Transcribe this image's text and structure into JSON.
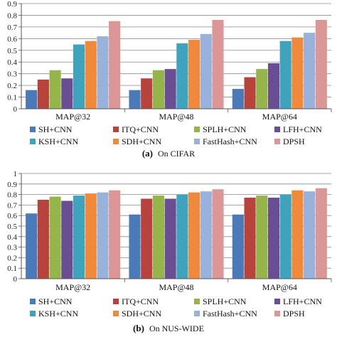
{
  "figure": {
    "series_names": [
      "SH+CNN",
      "ITQ+CNN",
      "SPLH+CNN",
      "LFH+CNN",
      "KSH+CNN",
      "SDH+CNN",
      "FastHash+CNN",
      "DPSH"
    ],
    "series_colors": [
      "#4a7ab8",
      "#b8433d",
      "#93b54a",
      "#6a4e93",
      "#3ea3bd",
      "#f08a3a",
      "#98b2dc",
      "#da9795"
    ]
  },
  "chart_data": [
    {
      "type": "bar",
      "caption_letter": "(a)",
      "caption_text": "On CIFAR",
      "categories": [
        "MAP@32",
        "MAP@48",
        "MAP@64"
      ],
      "ylim": [
        0,
        0.9
      ],
      "yticks": [
        "0",
        "0.1",
        "0.2",
        "0.3",
        "0.4",
        "0.5",
        "0.6",
        "0.7",
        "0.8",
        "0.9"
      ],
      "legend_position": "bottom",
      "grid": true,
      "series": [
        {
          "name": "SH+CNN",
          "values": [
            0.16,
            0.16,
            0.17
          ]
        },
        {
          "name": "ITQ+CNN",
          "values": [
            0.25,
            0.26,
            0.27
          ]
        },
        {
          "name": "SPLH+CNN",
          "values": [
            0.33,
            0.33,
            0.34
          ]
        },
        {
          "name": "LFH+CNN",
          "values": [
            0.26,
            0.34,
            0.39
          ]
        },
        {
          "name": "KSH+CNN",
          "values": [
            0.55,
            0.56,
            0.58
          ]
        },
        {
          "name": "SDH+CNN",
          "values": [
            0.58,
            0.59,
            0.61
          ]
        },
        {
          "name": "FastHash+CNN",
          "values": [
            0.62,
            0.64,
            0.65
          ]
        },
        {
          "name": "DPSH",
          "values": [
            0.75,
            0.76,
            0.76
          ]
        }
      ]
    },
    {
      "type": "bar",
      "caption_letter": "(b)",
      "caption_text": "On NUS-WIDE",
      "categories": [
        "MAP@32",
        "MAP@48",
        "MAP@64"
      ],
      "ylim": [
        0,
        1
      ],
      "yticks": [
        "0",
        "0.1",
        "0.2",
        "0.3",
        "0.4",
        "0.5",
        "0.6",
        "0.7",
        "0.8",
        "0.9",
        "1"
      ],
      "legend_position": "bottom",
      "grid": true,
      "series": [
        {
          "name": "SH+CNN",
          "values": [
            0.62,
            0.61,
            0.61
          ]
        },
        {
          "name": "ITQ+CNN",
          "values": [
            0.75,
            0.76,
            0.77
          ]
        },
        {
          "name": "SPLH+CNN",
          "values": [
            0.78,
            0.79,
            0.79
          ]
        },
        {
          "name": "LFH+CNN",
          "values": [
            0.74,
            0.76,
            0.77
          ]
        },
        {
          "name": "KSH+CNN",
          "values": [
            0.79,
            0.8,
            0.8
          ]
        },
        {
          "name": "SDH+CNN",
          "values": [
            0.81,
            0.82,
            0.84
          ]
        },
        {
          "name": "FastHash+CNN",
          "values": [
            0.82,
            0.83,
            0.83
          ]
        },
        {
          "name": "DPSH",
          "values": [
            0.84,
            0.85,
            0.86
          ]
        }
      ]
    }
  ]
}
